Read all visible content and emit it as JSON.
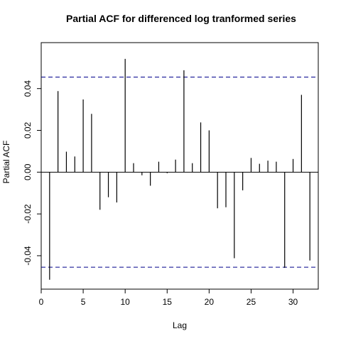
{
  "chart_data": {
    "type": "bar",
    "title": "Partial ACF for differenced log tranformed series",
    "xlabel": "Lag",
    "ylabel": "Partial ACF",
    "xlim": [
      0,
      33
    ],
    "ylim": [
      -0.056,
      0.062
    ],
    "x_ticks": [
      0,
      5,
      10,
      15,
      20,
      25,
      30
    ],
    "y_ticks": [
      -0.04,
      -0.02,
      0.0,
      0.02,
      0.04
    ],
    "y_tick_labels": [
      "-0.04",
      "-0.02",
      "0.00",
      "0.02",
      "0.04"
    ],
    "confidence_bounds": [
      0.0455,
      -0.0455
    ],
    "confidence_line_color": "#00008b",
    "bar_color": "#000000",
    "grid": false,
    "lags": [
      1,
      2,
      3,
      4,
      5,
      6,
      7,
      8,
      9,
      10,
      11,
      12,
      13,
      14,
      15,
      16,
      17,
      18,
      19,
      20,
      21,
      22,
      23,
      24,
      25,
      26,
      27,
      28,
      29,
      30,
      31,
      32
    ],
    "values": [
      -0.0515,
      0.0388,
      0.0098,
      0.0075,
      0.0348,
      0.0279,
      -0.018,
      -0.012,
      -0.0145,
      0.0542,
      0.0043,
      -0.0015,
      -0.0065,
      0.005,
      -0.0005,
      0.006,
      0.0488,
      0.0043,
      0.0238,
      0.02,
      -0.0173,
      -0.0168,
      -0.0412,
      -0.0087,
      0.0068,
      0.004,
      0.0055,
      0.005,
      -0.0458,
      0.0063,
      0.037,
      -0.0423
    ]
  }
}
